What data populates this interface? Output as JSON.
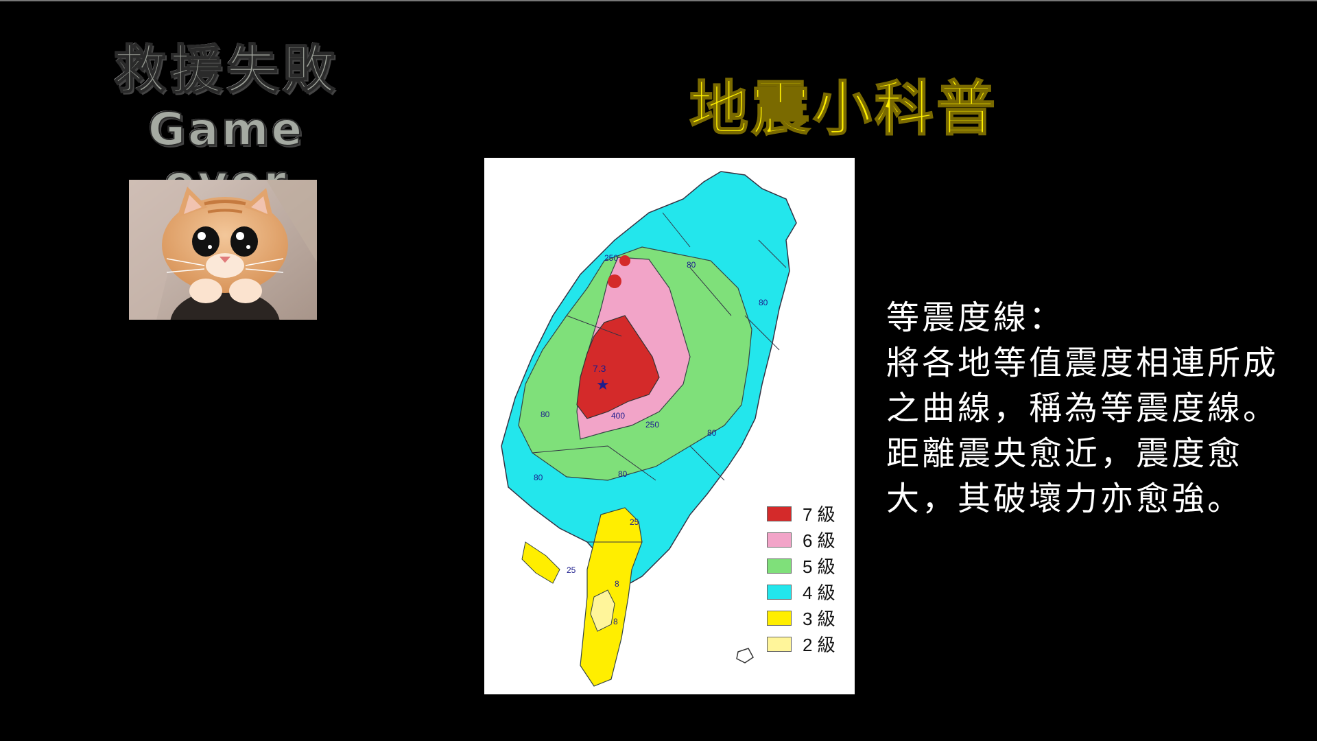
{
  "left_panel": {
    "title": "救援失敗",
    "subtitle": "Game over",
    "image_icon": "sad-cat-photo"
  },
  "science": {
    "title": "地震小科普",
    "map": {
      "epicenter_magnitude": "7.3",
      "contour_labels": [
        "250",
        "80",
        "80",
        "400",
        "250",
        "80",
        "80",
        "80",
        "80",
        "25",
        "25",
        "8",
        "8"
      ],
      "legend": [
        {
          "label": "7 級",
          "color": "#d42a2a"
        },
        {
          "label": "6 級",
          "color": "#f2a4c8"
        },
        {
          "label": "5 級",
          "color": "#7fe07a"
        },
        {
          "label": "4 級",
          "color": "#23e6ec"
        },
        {
          "label": "3 級",
          "color": "#ffee00"
        },
        {
          "label": "2 級",
          "color": "#fff59a"
        }
      ]
    },
    "explanation": {
      "lines": [
        "等震度線：",
        "將各地等值震度相連所成",
        "之曲線，稱為等震度線。",
        "距離震央愈近，震度愈",
        "大，其破壞力亦愈強。"
      ]
    }
  }
}
